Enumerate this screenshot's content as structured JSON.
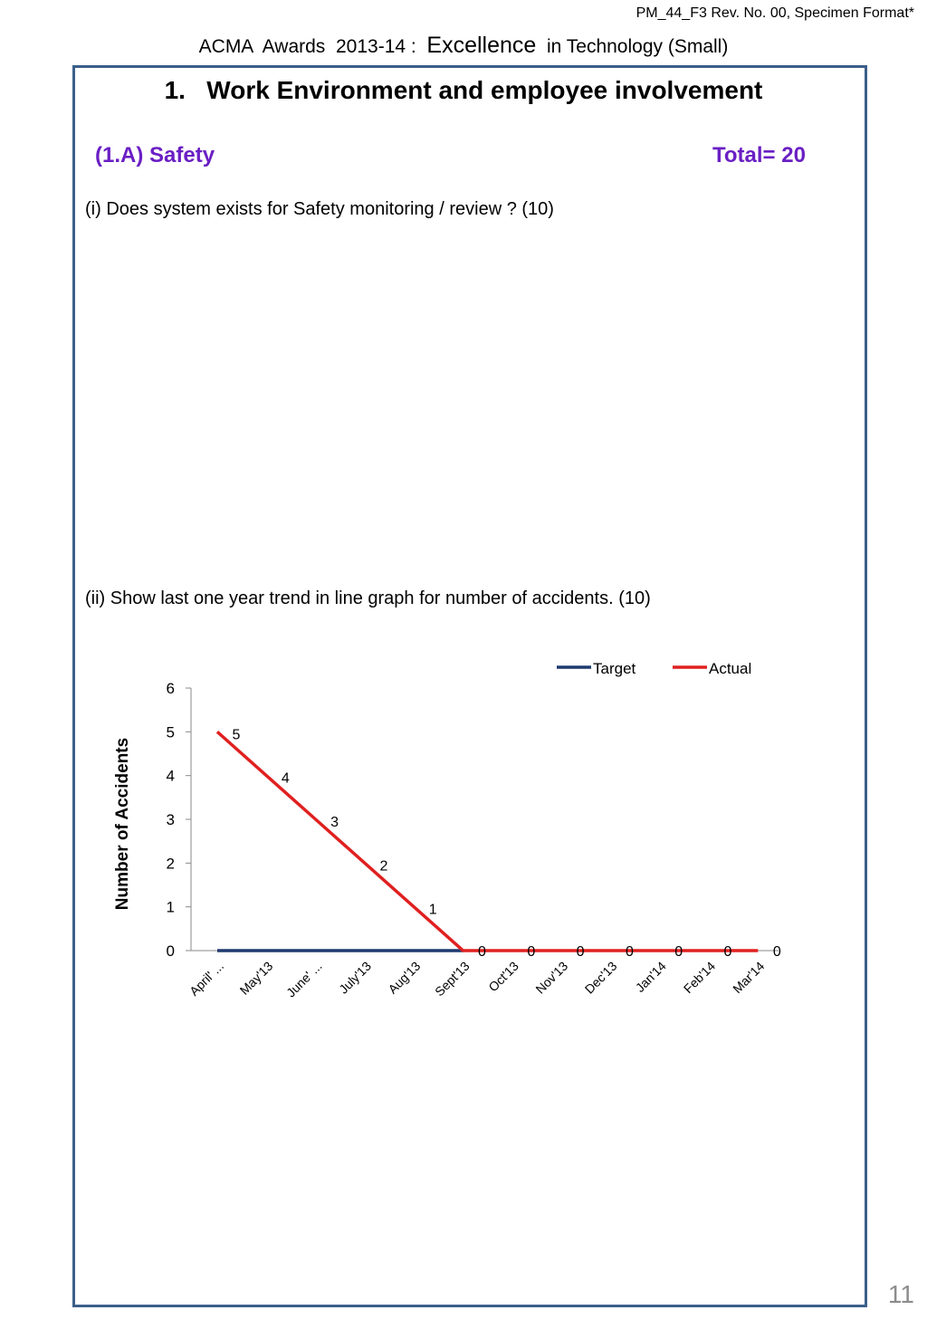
{
  "doc_code": "PM_44_F3 Rev. No. 00, Specimen Format*",
  "header": {
    "prefix": "ACMA  Awards  2013-14 :  ",
    "emphasis": "Excellence",
    "suffix": "  in Technology (Small)"
  },
  "section": {
    "title": "1.   Work Environment and employee involvement",
    "subsection": "(1.A) Safety",
    "total": "Total= 20",
    "question_1": "(i) Does system exists for Safety monitoring / review ? (10)",
    "question_2": "(ii)  Show last one year trend in line graph for number of accidents. (10)"
  },
  "page_number": "11",
  "chart_data": {
    "type": "line",
    "title": "",
    "xlabel": "",
    "ylabel": "Number of Accidents",
    "ylim": [
      0,
      6
    ],
    "yticks": [
      "0",
      "1",
      "2",
      "3",
      "4",
      "5",
      "6"
    ],
    "categories": [
      "April' ...",
      "May'13",
      "June' ...",
      "July'13",
      "Aug'13",
      "Sept'13",
      "Oct'13",
      "Nov'13",
      "Dec'13",
      "Jan'14",
      "Feb'14",
      "Mar'14"
    ],
    "legend_position": "top-right",
    "grid": false,
    "series": [
      {
        "name": "Target",
        "color": "#1f3a6e",
        "values": [
          0,
          0,
          0,
          0,
          0,
          0,
          null,
          null,
          null,
          null,
          null,
          null
        ],
        "data_labels": [
          "",
          "",
          "",
          "",
          "",
          "",
          "",
          "",
          "",
          "",
          "",
          ""
        ]
      },
      {
        "name": "Actual",
        "color": "#e02020",
        "values": [
          5,
          4,
          3,
          2,
          1,
          0,
          0,
          0,
          0,
          0,
          0,
          0
        ],
        "data_labels": [
          "5",
          "4",
          "3",
          "2",
          "1",
          "0",
          "0",
          "0",
          "0",
          "0",
          "0",
          "0"
        ]
      }
    ]
  }
}
